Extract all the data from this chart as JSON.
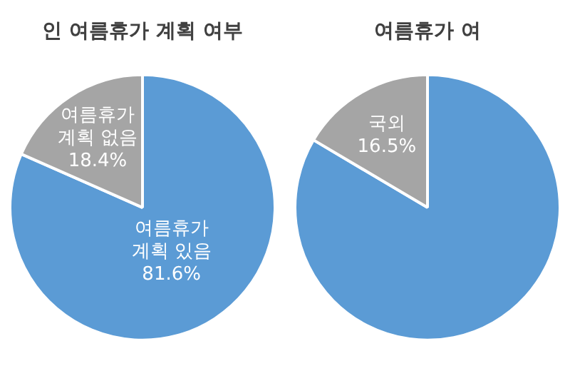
{
  "chart_data": [
    {
      "type": "pie",
      "title": "인 여름휴가 계획 여부",
      "categories": [
        "여름휴가 계획 있음",
        "여름휴가 계획 없음"
      ],
      "values": [
        81.6,
        18.4
      ],
      "colors": [
        "#5b9bd5",
        "#a5a5a5"
      ],
      "value_labels": [
        "81.6%",
        "18.4%"
      ]
    },
    {
      "type": "pie",
      "title": "여름휴가 여",
      "categories": [
        null,
        "국외"
      ],
      "values": [
        83.5,
        16.5
      ],
      "colors": [
        "#5b9bd5",
        "#a5a5a5"
      ],
      "value_labels": [
        null,
        "16.5%"
      ]
    }
  ]
}
